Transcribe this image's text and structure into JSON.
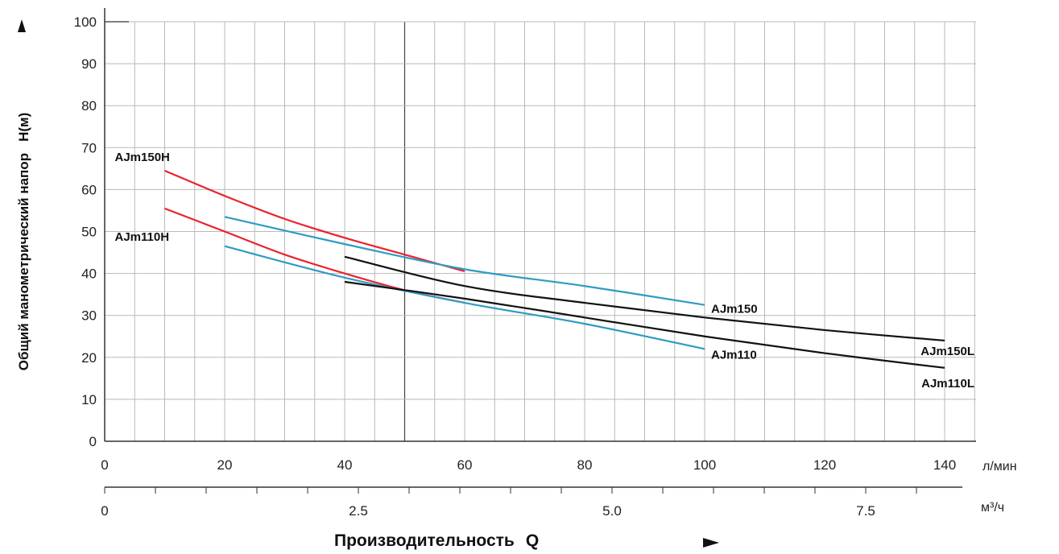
{
  "chart_data": {
    "type": "line",
    "ylabel": "Общий манометрический напор",
    "ylabel_symbol": "H(м)",
    "xlabel": "Производительность",
    "xlabel_symbol": "Q",
    "x_unit_primary": "л/мин",
    "x_unit_secondary": "м³/ч",
    "xlim": [
      0,
      145
    ],
    "ylim": [
      0,
      100
    ],
    "x_ticks": [
      0,
      20,
      40,
      60,
      80,
      100,
      120,
      140
    ],
    "y_ticks": [
      0,
      10,
      20,
      30,
      40,
      50,
      60,
      70,
      80,
      90,
      100
    ],
    "x2_ticks": [
      {
        "label": "0",
        "value": 0
      },
      {
        "label": "2.5",
        "value": 2.5
      },
      {
        "label": "5.0",
        "value": 5.0
      },
      {
        "label": "7.5",
        "value": 7.5
      }
    ],
    "grid": true,
    "colors": {
      "H": "#e8232c",
      "std": "#2f9bc4",
      "L": "#111111"
    },
    "series": [
      {
        "name": "AJm150H",
        "color": "#e8232c",
        "x": [
          10,
          20,
          30,
          40,
          50,
          60
        ],
        "y": [
          64.5,
          58.5,
          53,
          48.5,
          44.5,
          40.5
        ]
      },
      {
        "name": "AJm110H",
        "color": "#e8232c",
        "x": [
          10,
          20,
          30,
          40,
          50,
          60
        ],
        "y": [
          55.5,
          50,
          44.5,
          40,
          36,
          33
        ]
      },
      {
        "name": "AJm150",
        "color": "#2f9bc4",
        "x": [
          20,
          40,
          60,
          80,
          100
        ],
        "y": [
          53.5,
          47,
          41,
          37,
          32.5
        ]
      },
      {
        "name": "AJm110",
        "color": "#2f9bc4",
        "x": [
          20,
          40,
          60,
          80,
          100
        ],
        "y": [
          46.5,
          39,
          33,
          28,
          22
        ]
      },
      {
        "name": "AJm150L",
        "color": "#111111",
        "x": [
          40,
          60,
          80,
          100,
          120,
          140
        ],
        "y": [
          44,
          37,
          33,
          29.5,
          26.5,
          24
        ]
      },
      {
        "name": "AJm110L",
        "color": "#111111",
        "x": [
          40,
          60,
          80,
          100,
          120,
          140
        ],
        "y": [
          38,
          34,
          29.5,
          25,
          21,
          17.5
        ]
      }
    ]
  }
}
